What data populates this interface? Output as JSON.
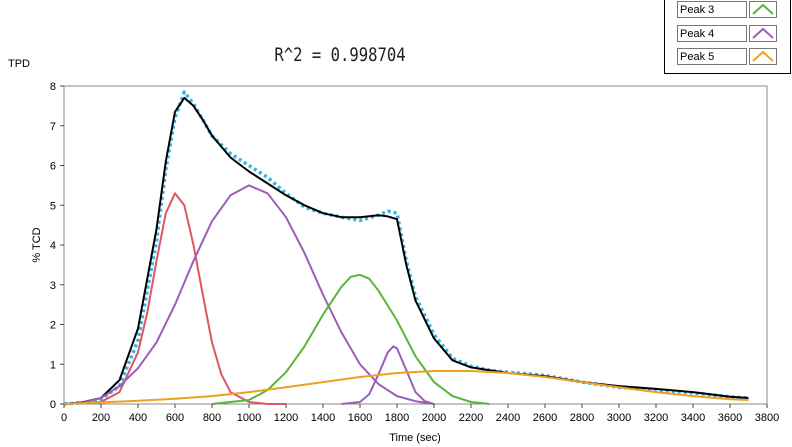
{
  "chart_data": {
    "type": "line",
    "title": "R^2 = 0.998704",
    "corner_label": "TPD",
    "xlabel": "Time (sec)",
    "ylabel": "% TCD",
    "xlim": [
      0,
      3800
    ],
    "ylim": [
      0,
      8
    ],
    "xticks": [
      0,
      200,
      400,
      600,
      800,
      1000,
      1200,
      1400,
      1600,
      1800,
      2000,
      2200,
      2400,
      2600,
      2800,
      3000,
      3200,
      3400,
      3600,
      3800
    ],
    "yticks": [
      0,
      1,
      2,
      3,
      4,
      5,
      6,
      7,
      8
    ],
    "grid": false,
    "legend_position": "top-right",
    "legend": [
      {
        "label": "Peak 3",
        "color": "#5ab43a"
      },
      {
        "label": "Peak 4",
        "color": "#9b5fb5"
      },
      {
        "label": "Peak 5",
        "color": "#f0a020"
      }
    ],
    "series": [
      {
        "color": "#34b4e0",
        "style": "dotted",
        "x": [
          0,
          100,
          200,
          300,
          400,
          500,
          550,
          600,
          650,
          700,
          750,
          800,
          900,
          1000,
          1100,
          1200,
          1300,
          1400,
          1500,
          1600,
          1700,
          1750,
          1800,
          1850,
          1900,
          2000,
          2100,
          2200,
          2300,
          2400,
          2600,
          2800,
          3000,
          3200,
          3400,
          3600,
          3700
        ],
        "y": [
          0.0,
          0.03,
          0.12,
          0.45,
          1.6,
          4.1,
          5.9,
          7.2,
          7.85,
          7.55,
          7.15,
          6.75,
          6.3,
          6.0,
          5.7,
          5.3,
          4.95,
          4.8,
          4.7,
          4.62,
          4.75,
          4.85,
          4.8,
          3.6,
          2.7,
          1.75,
          1.15,
          0.95,
          0.85,
          0.8,
          0.72,
          0.55,
          0.42,
          0.35,
          0.28,
          0.18,
          0.15
        ]
      },
      {
        "color": "#000000",
        "style": "solid",
        "x": [
          0,
          100,
          200,
          300,
          400,
          500,
          550,
          600,
          650,
          700,
          750,
          800,
          900,
          1000,
          1100,
          1200,
          1300,
          1400,
          1500,
          1600,
          1700,
          1750,
          1800,
          1850,
          1900,
          2000,
          2100,
          2200,
          2300,
          2400,
          2600,
          2800,
          3000,
          3200,
          3400,
          3600,
          3700
        ],
        "y": [
          0.0,
          0.04,
          0.15,
          0.6,
          1.9,
          4.4,
          6.1,
          7.35,
          7.7,
          7.5,
          7.15,
          6.75,
          6.2,
          5.85,
          5.55,
          5.25,
          5.0,
          4.8,
          4.7,
          4.7,
          4.75,
          4.72,
          4.65,
          3.5,
          2.6,
          1.65,
          1.1,
          0.92,
          0.85,
          0.78,
          0.7,
          0.55,
          0.45,
          0.38,
          0.3,
          0.18,
          0.15
        ]
      },
      {
        "color": "#e05565",
        "style": "solid",
        "x": [
          0,
          200,
          300,
          400,
          450,
          500,
          550,
          600,
          650,
          700,
          750,
          800,
          850,
          900,
          1000,
          1100,
          1200
        ],
        "y": [
          0.0,
          0.05,
          0.3,
          1.3,
          2.3,
          3.6,
          4.8,
          5.3,
          5.0,
          4.0,
          2.75,
          1.55,
          0.75,
          0.3,
          0.05,
          0.0,
          0.0
        ]
      },
      {
        "color": "#9b5fb5",
        "style": "solid",
        "x": [
          0,
          100,
          200,
          300,
          400,
          500,
          600,
          700,
          800,
          900,
          1000,
          1100,
          1200,
          1300,
          1400,
          1500,
          1600,
          1700,
          1800,
          1900,
          2000
        ],
        "y": [
          0.0,
          0.03,
          0.15,
          0.45,
          0.9,
          1.55,
          2.5,
          3.6,
          4.6,
          5.25,
          5.5,
          5.3,
          4.7,
          3.8,
          2.75,
          1.8,
          1.0,
          0.5,
          0.2,
          0.07,
          0.0
        ]
      },
      {
        "color": "#5ab43a",
        "style": "solid",
        "x": [
          800,
          1000,
          1100,
          1200,
          1300,
          1400,
          1500,
          1550,
          1600,
          1650,
          1700,
          1800,
          1900,
          2000,
          2100,
          2200,
          2300
        ],
        "y": [
          0.0,
          0.1,
          0.35,
          0.8,
          1.45,
          2.25,
          2.95,
          3.2,
          3.25,
          3.15,
          2.85,
          2.1,
          1.2,
          0.55,
          0.2,
          0.05,
          0.0
        ]
      },
      {
        "color": "#9b5fb5",
        "style": "solid",
        "x": [
          1500,
          1600,
          1650,
          1700,
          1750,
          1780,
          1800,
          1850,
          1900,
          1950,
          2000
        ],
        "y": [
          0.0,
          0.05,
          0.25,
          0.75,
          1.3,
          1.45,
          1.4,
          0.85,
          0.3,
          0.07,
          0.0
        ]
      },
      {
        "color": "#f0a020",
        "style": "solid",
        "x": [
          0,
          200,
          400,
          600,
          800,
          1000,
          1200,
          1400,
          1600,
          1800,
          2000,
          2200,
          2400,
          2600,
          2800,
          3000,
          3200,
          3400,
          3600,
          3700
        ],
        "y": [
          0.0,
          0.04,
          0.08,
          0.13,
          0.2,
          0.3,
          0.42,
          0.55,
          0.68,
          0.78,
          0.83,
          0.83,
          0.78,
          0.68,
          0.55,
          0.42,
          0.3,
          0.2,
          0.12,
          0.1
        ]
      }
    ]
  }
}
